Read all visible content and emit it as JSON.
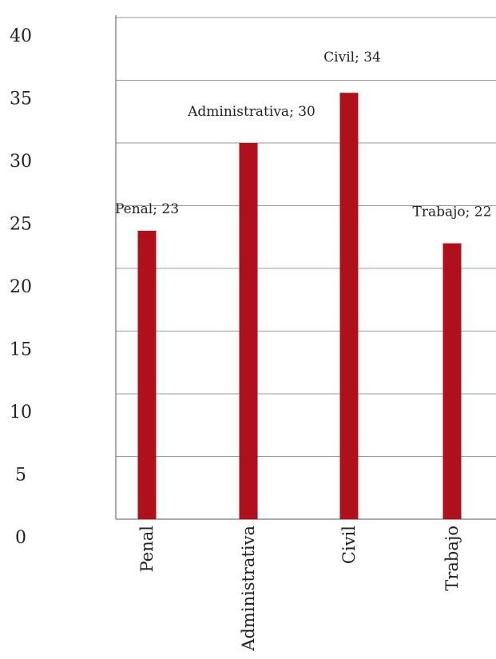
{
  "chart_data": {
    "type": "bar",
    "categories": [
      "Penal",
      "Administrativa",
      "Civil",
      "Trabajo"
    ],
    "values": [
      23,
      30,
      34,
      22
    ],
    "data_labels": [
      "Penal; 23",
      "Administrativa; 30",
      "Civil; 34",
      "Trabajo; 22"
    ],
    "ylim": [
      0,
      40
    ],
    "yticks": [
      "0",
      "5",
      "10",
      "15",
      "20",
      "25",
      "30",
      "35",
      "40"
    ],
    "grid": true,
    "legend": "none",
    "colors": {
      "bar": "#B00F1C",
      "grid": "#999999",
      "axis": "#555555"
    }
  }
}
